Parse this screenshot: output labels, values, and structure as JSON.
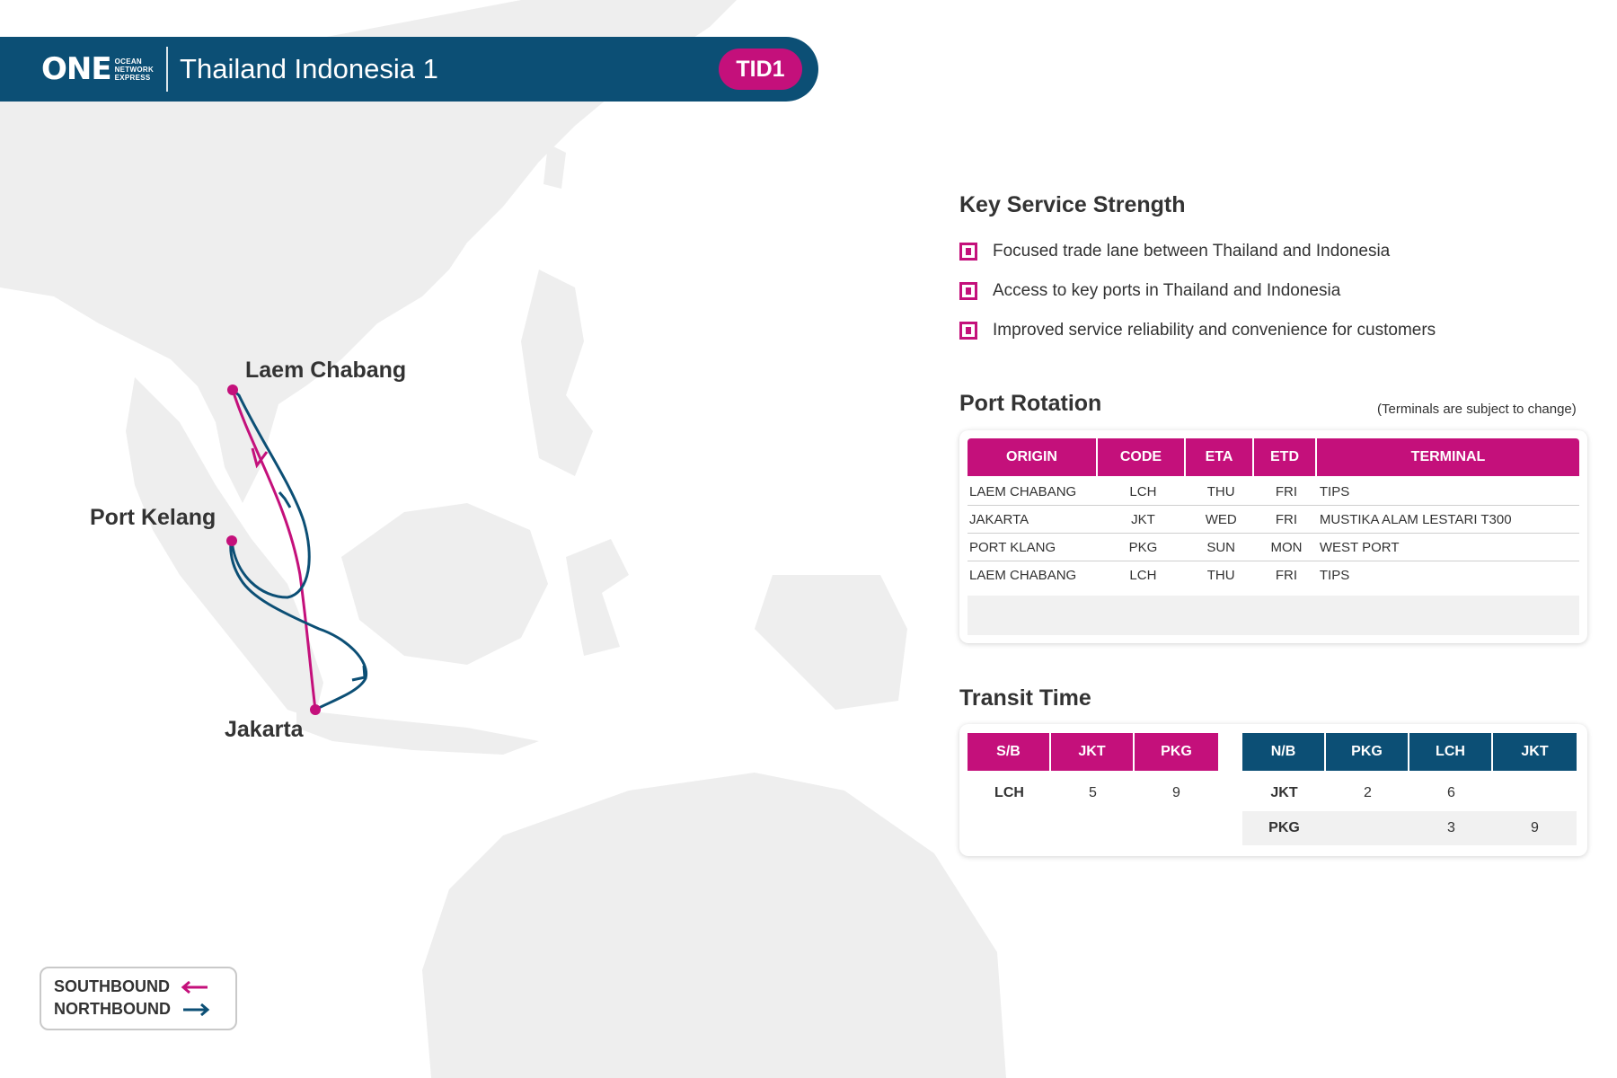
{
  "header": {
    "logo_word": "ONE",
    "logo_sub": [
      "OCEAN",
      "NETWORK",
      "EXPRESS"
    ],
    "service_name": "Thailand Indonesia 1",
    "service_code": "TID1"
  },
  "map": {
    "ports": [
      "Laem Chabang",
      "Port Kelang",
      "Jakarta"
    ]
  },
  "legend": {
    "southbound": "SOUTHBOUND",
    "northbound": "NORTHBOUND"
  },
  "key_strength": {
    "title": "Key Service Strength",
    "items": [
      "Focused trade lane between Thailand and Indonesia",
      "Access to key ports in Thailand and Indonesia",
      "Improved service reliability and convenience for customers"
    ]
  },
  "port_rotation": {
    "title": "Port Rotation",
    "note": "(Terminals are subject to change)",
    "headers": [
      "ORIGIN",
      "CODE",
      "ETA",
      "ETD",
      "TERMINAL"
    ],
    "rows": [
      [
        "LAEM CHABANG",
        "LCH",
        "THU",
        "FRI",
        "TIPS"
      ],
      [
        "JAKARTA",
        "JKT",
        "WED",
        "FRI",
        "MUSTIKA ALAM LESTARI T300"
      ],
      [
        "PORT KLANG",
        "PKG",
        "SUN",
        "MON",
        "WEST PORT"
      ],
      [
        "LAEM CHABANG",
        "LCH",
        "THU",
        "FRI",
        "TIPS"
      ]
    ]
  },
  "transit_time": {
    "title": "Transit Time",
    "southbound": {
      "headers": [
        "S/B",
        "JKT",
        "PKG"
      ],
      "rows": [
        [
          "LCH",
          "5",
          "9"
        ]
      ]
    },
    "northbound": {
      "headers": [
        "N/B",
        "PKG",
        "LCH",
        "JKT"
      ],
      "rows": [
        [
          "JKT",
          "2",
          "6",
          ""
        ],
        [
          "PKG",
          "",
          "3",
          "9"
        ]
      ]
    }
  },
  "colors": {
    "brand_navy": "#0c4f75",
    "accent_magenta": "#c4107b",
    "southbound": "#c4107b",
    "northbound": "#0c4f75",
    "land": "#eeeeee"
  }
}
